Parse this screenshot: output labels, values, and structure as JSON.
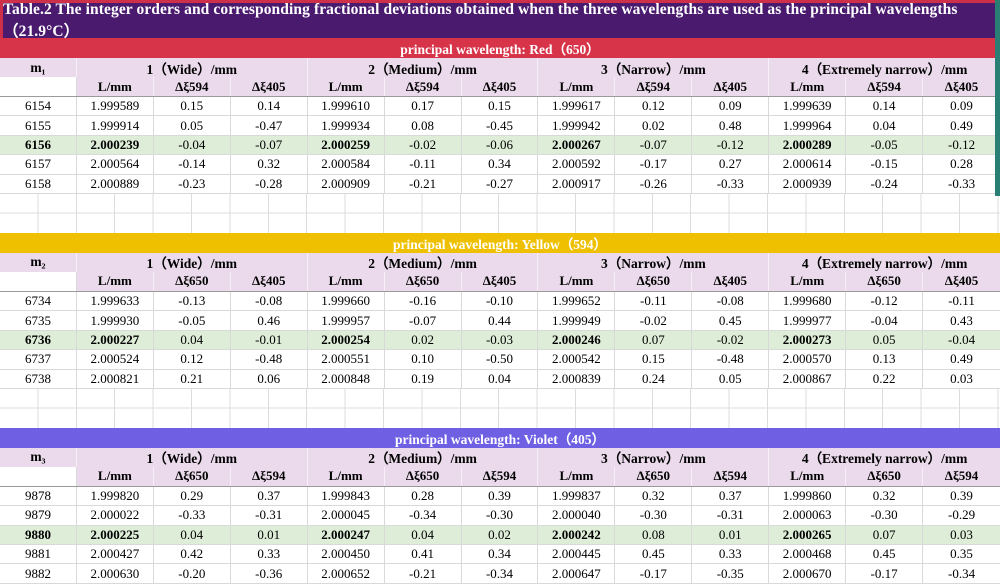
{
  "title": "Table.2 The integer orders and corresponding fractional deviations obtained when the three wavelengths are used as the principal wavelengths（21.9°C）",
  "colors": {
    "title_bg": "#4A1A6E",
    "title_border": "#CE2F49",
    "header_bg": "#EADAEB",
    "highlight_bg": "#DEEDD8",
    "grid_line": "#D9D9D9",
    "sheet_line": "#DCDCDC",
    "right_strip": "#2A7F74"
  },
  "sections": [
    {
      "id": "red",
      "bar_label": "principal wavelength: Red（650）",
      "bar_color": "#D73349",
      "m_label": "m₁",
      "group_headers": [
        "1（Wide）/mm",
        "2（Medium）/mm",
        "3（Narrow）/mm",
        "4（Extremely narrow）/mm"
      ],
      "sub_headers": [
        "L/mm",
        "Δξ594",
        "Δξ405"
      ],
      "rows": [
        {
          "m": "6154",
          "highlight": false,
          "values": [
            "1.999589",
            "0.15",
            "0.14",
            "1.999610",
            "0.17",
            "0.15",
            "1.999617",
            "0.12",
            "0.09",
            "1.999639",
            "0.14",
            "0.09"
          ]
        },
        {
          "m": "6155",
          "highlight": false,
          "values": [
            "1.999914",
            "0.05",
            "-0.47",
            "1.999934",
            "0.08",
            "-0.45",
            "1.999942",
            "0.02",
            "0.48",
            "1.999964",
            "0.04",
            "0.49"
          ]
        },
        {
          "m": "6156",
          "highlight": true,
          "values": [
            "2.000239",
            "-0.04",
            "-0.07",
            "2.000259",
            "-0.02",
            "-0.06",
            "2.000267",
            "-0.07",
            "-0.12",
            "2.000289",
            "-0.05",
            "-0.12"
          ]
        },
        {
          "m": "6157",
          "highlight": false,
          "values": [
            "2.000564",
            "-0.14",
            "0.32",
            "2.000584",
            "-0.11",
            "0.34",
            "2.000592",
            "-0.17",
            "0.27",
            "2.000614",
            "-0.15",
            "0.28"
          ]
        },
        {
          "m": "6158",
          "highlight": false,
          "values": [
            "2.000889",
            "-0.23",
            "-0.28",
            "2.000909",
            "-0.21",
            "-0.27",
            "2.000917",
            "-0.26",
            "-0.33",
            "2.000939",
            "-0.24",
            "-0.33"
          ]
        }
      ]
    },
    {
      "id": "yellow",
      "bar_label": "principal wavelength: Yellow（594）",
      "bar_color": "#EEC000",
      "m_label": "m₂",
      "group_headers": [
        "1（Wide）/mm",
        "2（Medium）/mm",
        "3（Narrow）/mm",
        "4（Extremely narrow）/mm"
      ],
      "sub_headers": [
        "L/mm",
        "Δξ650",
        "Δξ405"
      ],
      "rows": [
        {
          "m": "6734",
          "highlight": false,
          "values": [
            "1.999633",
            "-0.13",
            "-0.08",
            "1.999660",
            "-0.16",
            "-0.10",
            "1.999652",
            "-0.11",
            "-0.08",
            "1.999680",
            "-0.12",
            "-0.11"
          ]
        },
        {
          "m": "6735",
          "highlight": false,
          "values": [
            "1.999930",
            "-0.05",
            "0.46",
            "1.999957",
            "-0.07",
            "0.44",
            "1.999949",
            "-0.02",
            "0.45",
            "1.999977",
            "-0.04",
            "0.43"
          ]
        },
        {
          "m": "6736",
          "highlight": true,
          "values": [
            "2.000227",
            "0.04",
            "-0.01",
            "2.000254",
            "0.02",
            "-0.03",
            "2.000246",
            "0.07",
            "-0.02",
            "2.000273",
            "0.05",
            "-0.04"
          ]
        },
        {
          "m": "6737",
          "highlight": false,
          "values": [
            "2.000524",
            "0.12",
            "-0.48",
            "2.000551",
            "0.10",
            "-0.50",
            "2.000542",
            "0.15",
            "-0.48",
            "2.000570",
            "0.13",
            "0.49"
          ]
        },
        {
          "m": "6738",
          "highlight": false,
          "values": [
            "2.000821",
            "0.21",
            "0.06",
            "2.000848",
            "0.19",
            "0.04",
            "2.000839",
            "0.24",
            "0.05",
            "2.000867",
            "0.22",
            "0.03"
          ]
        }
      ]
    },
    {
      "id": "violet",
      "bar_label": "principal wavelength: Violet（405）",
      "bar_color": "#6E5FE3",
      "m_label": "m₃",
      "group_headers": [
        "1（Wide）/mm",
        "2（Medium）/mm",
        "3（Narrow）/mm",
        "4（Extremely narrow）/mm"
      ],
      "sub_headers": [
        "L/mm",
        "Δξ650",
        "Δξ594"
      ],
      "rows": [
        {
          "m": "9878",
          "highlight": false,
          "values": [
            "1.999820",
            "0.29",
            "0.37",
            "1.999843",
            "0.28",
            "0.39",
            "1.999837",
            "0.32",
            "0.37",
            "1.999860",
            "0.32",
            "0.39"
          ]
        },
        {
          "m": "9879",
          "highlight": false,
          "values": [
            "2.000022",
            "-0.33",
            "-0.31",
            "2.000045",
            "-0.34",
            "-0.30",
            "2.000040",
            "-0.30",
            "-0.31",
            "2.000063",
            "-0.30",
            "-0.29"
          ]
        },
        {
          "m": "9880",
          "highlight": true,
          "values": [
            "2.000225",
            "0.04",
            "0.01",
            "2.000247",
            "0.04",
            "0.02",
            "2.000242",
            "0.08",
            "0.01",
            "2.000265",
            "0.07",
            "0.03"
          ]
        },
        {
          "m": "9881",
          "highlight": false,
          "values": [
            "2.000427",
            "0.42",
            "0.33",
            "2.000450",
            "0.41",
            "0.34",
            "2.000445",
            "0.45",
            "0.33",
            "2.000468",
            "0.45",
            "0.35"
          ]
        },
        {
          "m": "9882",
          "highlight": false,
          "values": [
            "2.000630",
            "-0.20",
            "-0.36",
            "2.000652",
            "-0.21",
            "-0.34",
            "2.000647",
            "-0.17",
            "-0.35",
            "2.000670",
            "-0.17",
            "-0.34"
          ]
        }
      ]
    }
  ]
}
